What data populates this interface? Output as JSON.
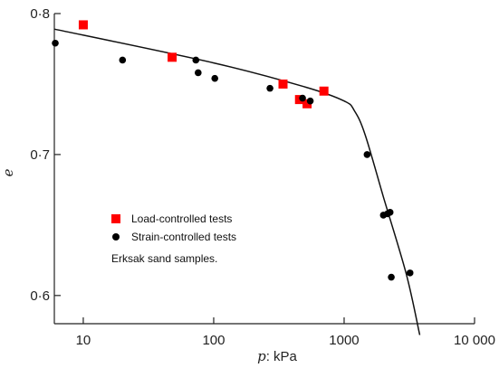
{
  "chart_data": {
    "type": "scatter",
    "xlabel_var": "p",
    "xlabel_unit": ": kPa",
    "ylabel": "e",
    "xscale": "log",
    "xlim": [
      6,
      10000
    ],
    "ylim": [
      0.58,
      0.8
    ],
    "x_ticks": [
      10,
      100,
      1000,
      10000
    ],
    "x_tick_labels": [
      "10",
      "100",
      "1000",
      "10 000"
    ],
    "y_ticks": [
      0.6,
      0.7,
      0.8
    ],
    "y_tick_labels": [
      "0·6",
      "0·7",
      "0·8"
    ],
    "grid": false,
    "legend_position": "center-left",
    "series": [
      {
        "name": "Load-controlled tests",
        "marker": "square",
        "color": "#ff0000",
        "points": [
          [
            10,
            0.792
          ],
          [
            48,
            0.769
          ],
          [
            340,
            0.75
          ],
          [
            455,
            0.739
          ],
          [
            520,
            0.736
          ],
          [
            700,
            0.745
          ]
        ]
      },
      {
        "name": "Strain-controlled tests",
        "marker": "circle",
        "color": "#000000",
        "points": [
          [
            6.1,
            0.779
          ],
          [
            20,
            0.767
          ],
          [
            73,
            0.767
          ],
          [
            76,
            0.758
          ],
          [
            102,
            0.754
          ],
          [
            270,
            0.747
          ],
          [
            480,
            0.74
          ],
          [
            550,
            0.738
          ],
          [
            1500,
            0.7
          ],
          [
            2000,
            0.657
          ],
          [
            2150,
            0.658
          ],
          [
            2250,
            0.659
          ],
          [
            2300,
            0.613
          ],
          [
            3200,
            0.616
          ]
        ]
      }
    ],
    "fit_line": [
      [
        6,
        0.789
      ],
      [
        100,
        0.765
      ],
      [
        500,
        0.748
      ],
      [
        1000,
        0.738
      ],
      [
        1200,
        0.731
      ],
      [
        1450,
        0.714
      ],
      [
        2000,
        0.67
      ],
      [
        3000,
        0.615
      ],
      [
        3800,
        0.572
      ]
    ],
    "annotation": "Erksak sand samples."
  }
}
